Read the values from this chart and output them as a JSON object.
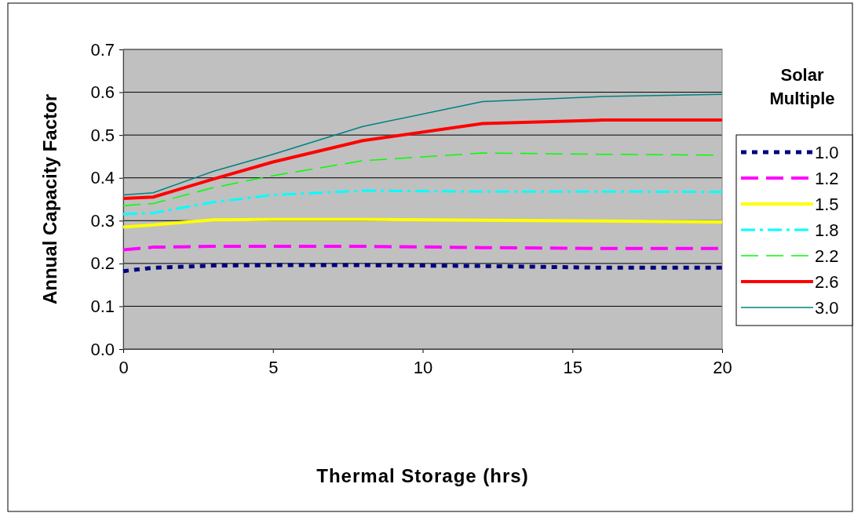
{
  "chart_data": {
    "type": "line",
    "xlabel": "Thermal Storage (hrs)",
    "ylabel": "Annual Capacity Factor",
    "legend_title": "Solar Multiple",
    "legend": "right",
    "grid": "y",
    "marker": "none",
    "x": [
      0,
      1,
      3,
      5,
      8,
      12,
      16,
      20
    ],
    "xlim": [
      0,
      20
    ],
    "xticks": [
      0,
      5,
      10,
      15,
      20
    ],
    "ylim": [
      0,
      0.7
    ],
    "yticks": [
      {
        "value": 0,
        "label": "0.0"
      },
      0.1,
      0.2,
      0.3,
      0.4,
      0.5,
      0.6,
      0.7
    ],
    "series": [
      {
        "name": "1.0",
        "color": "#000080",
        "line_style": "dotted",
        "values": [
          0.182,
          0.19,
          0.195,
          0.196,
          0.196,
          0.194,
          0.19,
          0.19
        ]
      },
      {
        "name": "1.2",
        "color": "#ff00ff",
        "line_style": "dashed",
        "values": [
          0.232,
          0.238,
          0.24,
          0.24,
          0.24,
          0.237,
          0.235,
          0.235
        ]
      },
      {
        "name": "1.5",
        "color": "#ffff00",
        "line_style": "solid",
        "values": [
          0.285,
          0.29,
          0.302,
          0.303,
          0.303,
          0.301,
          0.299,
          0.297
        ]
      },
      {
        "name": "1.8",
        "color": "#00ffff",
        "line_style": "dashdot",
        "values": [
          0.315,
          0.318,
          0.343,
          0.36,
          0.37,
          0.368,
          0.368,
          0.367
        ]
      },
      {
        "name": "2.2",
        "color": "#00ff00",
        "line_style": "dashed",
        "values": [
          0.335,
          0.34,
          0.377,
          0.405,
          0.44,
          0.458,
          0.455,
          0.453
        ]
      },
      {
        "name": "2.6",
        "color": "#ff0000",
        "line_style": "solid",
        "values": [
          0.352,
          0.355,
          0.397,
          0.437,
          0.487,
          0.527,
          0.535,
          0.535
        ]
      },
      {
        "name": "3.0",
        "color": "#008080",
        "line_style": "solid",
        "values": [
          0.36,
          0.365,
          0.415,
          0.455,
          0.52,
          0.578,
          0.59,
          0.595
        ]
      }
    ]
  }
}
